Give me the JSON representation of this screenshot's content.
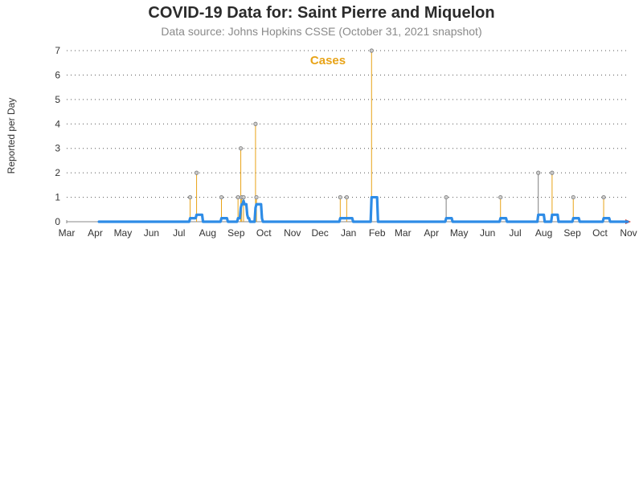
{
  "title": "COVID-19 Data for: Saint Pierre and Miquelon",
  "subtitle": "Data source: Johns Hopkins CSSE (October 31, 2021 snapshot)",
  "colors": {
    "bars": "#e8a317",
    "bars_alt": "#7f7f7f",
    "average_line": "#2e8ce6",
    "grid": "#555555",
    "marker_fill": "#cccccc",
    "label": "#e8a317"
  },
  "chart_data": {
    "type": "line",
    "title": "COVID-19 Data for: Saint Pierre and Miquelon",
    "subtitle": "Data source: Johns Hopkins CSSE (October 31, 2021 snapshot)",
    "ylabel": "Reported per Day",
    "xlabel": "",
    "series_label": "Cases",
    "ylim": [
      0,
      7
    ],
    "yticks": [
      0,
      1,
      2,
      3,
      4,
      5,
      6,
      7
    ],
    "xlim": [
      "2020-03-01",
      "2021-11-01"
    ],
    "xticks": [
      {
        "date": "2020-03-01",
        "label": "Mar"
      },
      {
        "date": "2020-04-01",
        "label": "Apr"
      },
      {
        "date": "2020-05-01",
        "label": "May"
      },
      {
        "date": "2020-06-01",
        "label": "Jun"
      },
      {
        "date": "2020-07-01",
        "label": "Jul"
      },
      {
        "date": "2020-08-01",
        "label": "Aug"
      },
      {
        "date": "2020-09-01",
        "label": "Sep"
      },
      {
        "date": "2020-10-01",
        "label": "Oct"
      },
      {
        "date": "2020-11-01",
        "label": "Nov"
      },
      {
        "date": "2020-12-01",
        "label": "Dec"
      },
      {
        "date": "2021-01-01",
        "label": "Jan"
      },
      {
        "date": "2021-02-01",
        "label": "Feb"
      },
      {
        "date": "2021-03-01",
        "label": "Mar"
      },
      {
        "date": "2021-04-01",
        "label": "Apr"
      },
      {
        "date": "2021-05-01",
        "label": "May"
      },
      {
        "date": "2021-06-01",
        "label": "Jun"
      },
      {
        "date": "2021-07-01",
        "label": "Jul"
      },
      {
        "date": "2021-08-01",
        "label": "Aug"
      },
      {
        "date": "2021-09-01",
        "label": "Sep"
      },
      {
        "date": "2021-10-01",
        "label": "Oct"
      },
      {
        "date": "2021-11-01",
        "label": "Nov"
      }
    ],
    "grid": true,
    "daily_cases": [
      {
        "date": "2020-07-13",
        "value": 1
      },
      {
        "date": "2020-07-20",
        "value": 2
      },
      {
        "date": "2020-08-16",
        "value": 1
      },
      {
        "date": "2020-09-03",
        "value": 1
      },
      {
        "date": "2020-09-06",
        "value": 3
      },
      {
        "date": "2020-09-07",
        "value": 1
      },
      {
        "date": "2020-09-09",
        "value": 1
      },
      {
        "date": "2020-09-22",
        "value": 4
      },
      {
        "date": "2020-09-23",
        "value": 1
      },
      {
        "date": "2020-12-23",
        "value": 1
      },
      {
        "date": "2020-12-30",
        "value": 1
      },
      {
        "date": "2021-01-26",
        "value": 7
      },
      {
        "date": "2021-04-17",
        "value": 1,
        "color": "alt"
      },
      {
        "date": "2021-06-15",
        "value": 1
      },
      {
        "date": "2021-07-26",
        "value": 2,
        "color": "alt"
      },
      {
        "date": "2021-08-10",
        "value": 2
      },
      {
        "date": "2021-09-02",
        "value": 1
      },
      {
        "date": "2021-10-05",
        "value": 1
      }
    ],
    "average_start": "2020-04-05",
    "average_end": "2021-10-31",
    "average_window_days": 7
  }
}
